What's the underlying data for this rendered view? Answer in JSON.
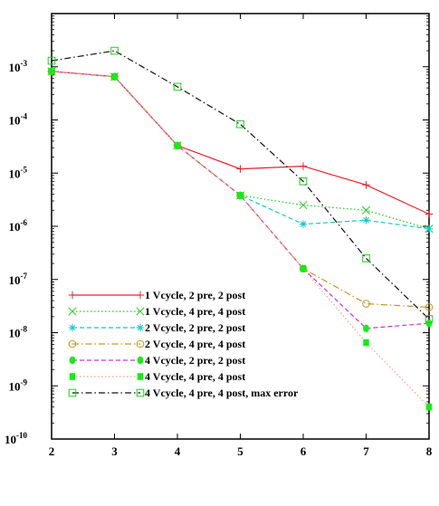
{
  "chart_data": {
    "type": "line",
    "title": "",
    "xlabel": "",
    "ylabel": "",
    "xlim": [
      2,
      8
    ],
    "ylim": [
      1e-10,
      0.01
    ],
    "yscale": "log",
    "grid": false,
    "legend_placement": "lower-left",
    "x_ticks": [
      "2",
      "3",
      "4",
      "5",
      "6",
      "7",
      "8"
    ],
    "y_ticks": [
      {
        "base": "10",
        "exp": "-10"
      },
      {
        "base": "10",
        "exp": "-9"
      },
      {
        "base": "10",
        "exp": "-8"
      },
      {
        "base": "10",
        "exp": "-7"
      },
      {
        "base": "10",
        "exp": "-6"
      },
      {
        "base": "10",
        "exp": "-5"
      },
      {
        "base": "10",
        "exp": "-4"
      },
      {
        "base": "10",
        "exp": "-3"
      }
    ],
    "x": [
      2,
      3,
      4,
      5,
      6,
      7,
      8
    ],
    "series": [
      {
        "name": "1 Vcycle, 2 pre, 2 post",
        "color": "#e8202a",
        "dash": "solid",
        "marker": "plus",
        "values": [
          0.00082,
          0.00065,
          3.3e-05,
          1.2e-05,
          1.35e-05,
          6e-06,
          1.7e-06
        ]
      },
      {
        "name": "1 Vcycle, 4 pre, 4 post",
        "color": "#22cc22",
        "dash": "dotted",
        "marker": "x",
        "values": [
          0.00082,
          0.00065,
          3.3e-05,
          3.8e-06,
          2.5e-06,
          2e-06,
          9e-07
        ]
      },
      {
        "name": "2 Vcycle, 2 pre, 2 post",
        "color": "#10c8c8",
        "dash": "dashed",
        "marker": "asterisk",
        "values": [
          0.00082,
          0.00065,
          3.3e-05,
          3.8e-06,
          1.1e-06,
          1.3e-06,
          9e-07
        ]
      },
      {
        "name": "2 Vcycle, 4 pre, 4 post",
        "color": "#c8961e",
        "dash": "dashdot",
        "marker": "open-circle",
        "values": [
          0.00082,
          0.00065,
          3.3e-05,
          3.8e-06,
          1.6e-07,
          3.5e-08,
          3e-08
        ]
      },
      {
        "name": "4 Vcycle, 2 pre, 2 post",
        "color": "#cc33cc",
        "dash": "dashed",
        "marker": "filled-circle",
        "values": [
          0.00082,
          0.00065,
          3.3e-05,
          3.8e-06,
          1.6e-07,
          1.2e-08,
          1.5e-08
        ]
      },
      {
        "name": "4 Vcycle, 4 pre, 4 post",
        "color": "#f0a08a",
        "dash": "dotted",
        "marker": "filled-square",
        "values": [
          0.00082,
          0.00065,
          3.3e-05,
          3.8e-06,
          1.6e-07,
          6.5e-09,
          4e-10
        ]
      },
      {
        "name": "4 Vcycle, 4 pre, 4 post, max error",
        "color": "#111111",
        "dash": "dashdot",
        "marker": "open-square",
        "values": [
          0.0013,
          0.002,
          0.00042,
          8.3e-05,
          7e-06,
          2.5e-07,
          1.8e-08
        ]
      }
    ]
  }
}
